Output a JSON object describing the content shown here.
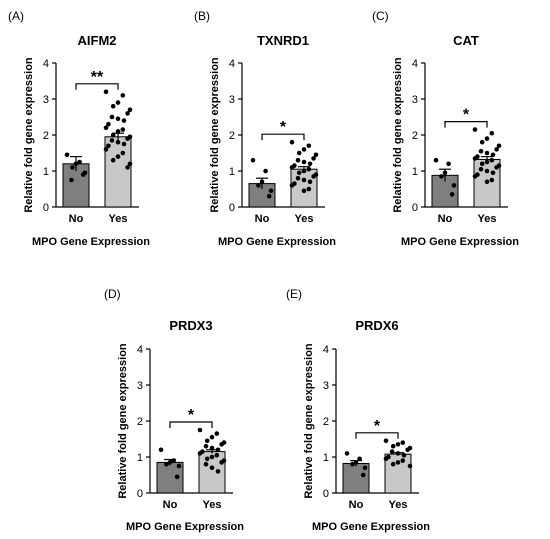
{
  "colors": {
    "no_bar": "#7f7f7f",
    "yes_bar": "#c8c8c8",
    "points": "#000000"
  },
  "chart_data": [
    {
      "type": "bar",
      "panel_label": "(A)",
      "title": "AIFM2",
      "xlabel": "MPO Gene Expression",
      "ylabel": "Relative fold gene expression",
      "categories": [
        "No",
        "Yes"
      ],
      "values": [
        1.2,
        1.95
      ],
      "errors": [
        0.2,
        0.1
      ],
      "ylim": [
        0,
        4
      ],
      "yticks": [
        "0",
        "1",
        "2",
        "3",
        "4"
      ],
      "significance": "**",
      "points": [
        [
          1.45,
          1.25,
          1.2,
          1.1,
          0.95,
          0.9,
          0.75
        ],
        [
          3.2,
          3.1,
          2.9,
          2.8,
          2.7,
          2.6,
          2.5,
          2.45,
          2.4,
          2.3,
          2.2,
          2.15,
          2.1,
          2.0,
          1.95,
          1.9,
          1.85,
          1.8,
          1.75,
          1.7,
          1.6,
          1.5,
          1.4,
          1.3,
          1.2,
          1.1
        ]
      ]
    },
    {
      "type": "bar",
      "panel_label": "(B)",
      "title": "TXNRD1",
      "xlabel": "MPO Gene Expression",
      "ylabel": "Relative fold gene expression",
      "categories": [
        "No",
        "Yes"
      ],
      "values": [
        0.65,
        1.05
      ],
      "errors": [
        0.15,
        0.07
      ],
      "ylim": [
        0,
        4
      ],
      "yticks": [
        "0",
        "1",
        "2",
        "3",
        "4"
      ],
      "significance": "*",
      "points": [
        [
          1.3,
          1.0,
          0.7,
          0.6,
          0.45,
          0.3
        ],
        [
          1.8,
          1.7,
          1.6,
          1.5,
          1.45,
          1.35,
          1.3,
          1.25,
          1.2,
          1.15,
          1.1,
          1.05,
          1.0,
          0.95,
          0.9,
          0.85,
          0.8,
          0.75,
          0.7,
          0.65,
          0.6,
          0.5,
          0.45
        ]
      ]
    },
    {
      "type": "bar",
      "panel_label": "(C)",
      "title": "CAT",
      "xlabel": "MPO Gene Expression",
      "ylabel": "Relative fold gene expression",
      "categories": [
        "No",
        "Yes"
      ],
      "values": [
        0.88,
        1.32
      ],
      "errors": [
        0.17,
        0.08
      ],
      "ylim": [
        0,
        4
      ],
      "yticks": [
        "0",
        "1",
        "2",
        "3",
        "4"
      ],
      "significance": "*",
      "points": [
        [
          1.3,
          1.2,
          0.95,
          0.85,
          0.6,
          0.35
        ],
        [
          2.15,
          2.05,
          1.9,
          1.8,
          1.7,
          1.6,
          1.55,
          1.5,
          1.45,
          1.4,
          1.35,
          1.3,
          1.25,
          1.2,
          1.15,
          1.1,
          1.05,
          1.0,
          0.95,
          0.9,
          0.85,
          0.75,
          0.7
        ]
      ]
    },
    {
      "type": "bar",
      "panel_label": "(D)",
      "title": "PRDX3",
      "xlabel": "MPO Gene Expression",
      "ylabel": "Relative fold gene expression",
      "categories": [
        "No",
        "Yes"
      ],
      "values": [
        0.85,
        1.15
      ],
      "errors": [
        0.08,
        0.05
      ],
      "ylim": [
        0,
        4
      ],
      "yticks": [
        "0",
        "1",
        "2",
        "3",
        "4"
      ],
      "significance": "*",
      "points": [
        [
          1.2,
          0.9,
          0.85,
          0.8,
          0.75,
          0.45
        ],
        [
          1.75,
          1.65,
          1.55,
          1.45,
          1.4,
          1.35,
          1.3,
          1.25,
          1.2,
          1.15,
          1.1,
          1.05,
          1.0,
          0.95,
          0.9,
          0.85,
          0.8,
          0.7,
          0.6
        ]
      ]
    },
    {
      "type": "bar",
      "panel_label": "(E)",
      "title": "PRDX6",
      "xlabel": "MPO Gene Expression",
      "ylabel": "Relative fold gene expression",
      "categories": [
        "No",
        "Yes"
      ],
      "values": [
        0.82,
        1.08
      ],
      "errors": [
        0.08,
        0.04
      ],
      "ylim": [
        0,
        4
      ],
      "yticks": [
        "0",
        "1",
        "2",
        "3",
        "4"
      ],
      "significance": "*",
      "points": [
        [
          1.1,
          0.95,
          0.85,
          0.8,
          0.7,
          0.5
        ],
        [
          1.45,
          1.4,
          1.35,
          1.3,
          1.25,
          1.2,
          1.15,
          1.1,
          1.05,
          1.0,
          0.95,
          0.9,
          0.85,
          0.8,
          0.75
        ]
      ]
    }
  ]
}
